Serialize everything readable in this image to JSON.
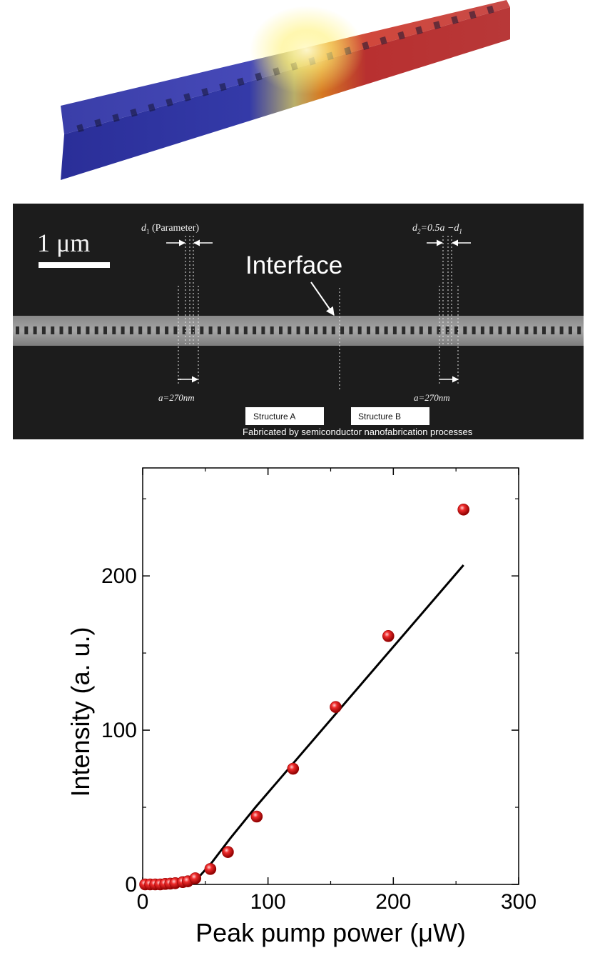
{
  "figure": {
    "sem": {
      "scale_label": "1 μm",
      "d1_label": "d",
      "d1_sub": "1",
      "d1_param": " (Parameter)",
      "d2_label": "d",
      "d2_sub": "2",
      "d2_expr": "=0.5a −d",
      "d2_expr_sub": "1",
      "interface_label": "Interface",
      "a_left_label": "a=270nm",
      "a_right_label": "a=270nm",
      "structure_a": "Structure A",
      "structure_b": "Structure B",
      "credit": "Fabricated by semiconductor nanofabrication processes"
    }
  },
  "chart_data": {
    "type": "scatter",
    "xlabel": "Peak pump power (μW)",
    "ylabel": "Intensity (a. u.)",
    "xlim": [
      0,
      300
    ],
    "ylim": [
      0,
      270
    ],
    "xticks": [
      0,
      100,
      200,
      300
    ],
    "yticks": [
      0,
      100,
      200
    ],
    "grid": false,
    "series": [
      {
        "kind": "points",
        "color": "#e01818",
        "x": [
          2,
          6,
          10,
          14,
          18,
          22,
          26,
          32,
          36,
          42,
          54,
          68,
          91,
          120,
          154,
          196,
          256
        ],
        "y": [
          0,
          0,
          0,
          0,
          0.3,
          0.5,
          0.8,
          1.5,
          2,
          4,
          10,
          21,
          44,
          75,
          115,
          161,
          243
        ]
      },
      {
        "kind": "fit-line",
        "color": "#000000",
        "x": [
          0,
          38,
          45,
          55,
          70,
          90,
          256
        ],
        "y": [
          0,
          0,
          5,
          14,
          30,
          50,
          207
        ]
      }
    ]
  }
}
